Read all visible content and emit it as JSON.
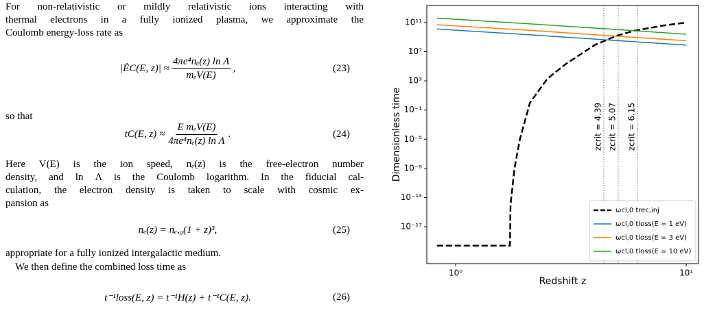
{
  "text": {
    "p1": [
      "For non-relativistic or mildly relativistic ions interacting with",
      "thermal electrons in a fully ionized plasma, we approximate the",
      "Coulomb energy-loss rate as"
    ],
    "eq23": {
      "lhs": "|ĖC(E, z)| ≈",
      "numerator": "4πe⁴nₑ(z) ln Λ",
      "denominator": "mₑV(E)",
      "tail": ",",
      "number": "(23)"
    },
    "p2": [
      "so that"
    ],
    "eq24": {
      "lhs": "tC(E, z) ≈",
      "numerator": "E mₑV(E)",
      "denominator": "4πe⁴nₑ(z) ln Λ",
      "tail": ".",
      "number": "(24)"
    },
    "p3": [
      "Here V(E) is the ion speed, nₑ(z) is the free-electron number",
      "density, and ln Λ is the Coulomb logarithm. In the fiducial cal-",
      "culation, the electron density is taken to scale with cosmic ex-",
      "pansion as"
    ],
    "eq25": {
      "body": "nₑ(z) = nₑ,₀(1 + z)³,",
      "number": "(25)"
    },
    "p4": [
      "appropriate for a fully ionized intergalactic medium."
    ],
    "p5": [
      "We then define the combined loss time as"
    ],
    "eq26": {
      "body": "t⁻¹loss(E, z) = t⁻¹H(z) + t⁻¹C(E, z).",
      "number": "(26)"
    }
  },
  "chart_data": {
    "type": "line",
    "xlabel": "Redshift z",
    "ylabel": "Dimensionless time",
    "xscale": "log",
    "yscale": "log",
    "xlim": [
      0.75,
      11.3
    ],
    "ylim": [
      8.5e-23,
      22000000000000.0
    ],
    "xticks": [
      {
        "value": 1,
        "label": "10⁰"
      },
      {
        "value": 10,
        "label": "10¹"
      }
    ],
    "yticks": [
      {
        "value": 1e-17,
        "label": "10⁻¹⁷"
      },
      {
        "value": 1e-13,
        "label": "10⁻¹³"
      },
      {
        "value": 1e-09,
        "label": "10⁻⁹"
      },
      {
        "value": 1e-05,
        "label": "10⁻⁵"
      },
      {
        "value": 0.1,
        "label": "10⁻¹"
      },
      {
        "value": 1000,
        "label": "10³"
      },
      {
        "value": 10000000.0,
        "label": "10⁷"
      },
      {
        "value": 100000000000.0,
        "label": "10¹¹"
      }
    ],
    "legend": "lower right",
    "series": [
      {
        "name": "ωcl,0 trec,inj",
        "color": "#000000",
        "dashed": true,
        "x": [
          0.83,
          1.72,
          1.73,
          1.8,
          1.9,
          2.1,
          2.5,
          3,
          4,
          5,
          6,
          8,
          10
        ],
        "values": [
          2.5e-20,
          2.5e-20,
          1e-14,
          1e-09,
          1e-05,
          1,
          2000,
          200000,
          80000000.0,
          1600000000.0,
          8000000000.0,
          40000000000.0,
          100000000000.0
        ]
      },
      {
        "name": "ωcl,0 tloss(E = 1 eV)",
        "color": "#1f77b4",
        "x": [
          0.83,
          2,
          5,
          10
        ],
        "values": [
          13000000000.0,
          2300000000.0,
          340000000.0,
          80000000.0
        ]
      },
      {
        "name": "ωcl,0 tloss(E = 3 eV)",
        "color": "#ff7f0e",
        "x": [
          0.83,
          2,
          5,
          10
        ],
        "values": [
          50000000000.0,
          9300000000.0,
          1350000000.0,
          320000000.0
        ]
      },
      {
        "name": "ωcl,0 tloss(E = 10 eV)",
        "color": "#2ca02c",
        "x": [
          0.83,
          2,
          5,
          10
        ],
        "values": [
          400000000000.0,
          74000000000.0,
          11000000000.0,
          2500000000.0
        ]
      }
    ],
    "annotations": [
      {
        "x": 4.39,
        "label": "zcrit = 4.39"
      },
      {
        "x": 5.07,
        "label": "zcrit = 5.07"
      },
      {
        "x": 6.15,
        "label": "zcrit = 6.15"
      }
    ]
  }
}
